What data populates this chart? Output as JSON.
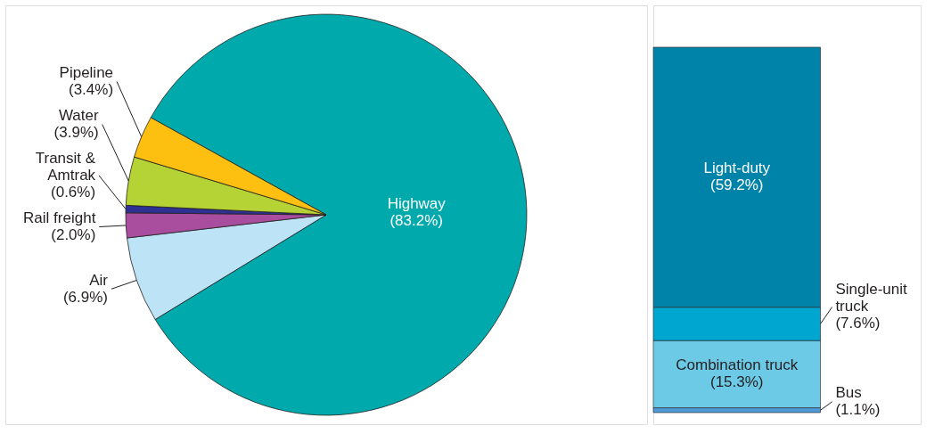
{
  "chart_data": [
    {
      "type": "pie",
      "categories": [
        "Highway",
        "Air",
        "Rail freight",
        "Transit & Amtrak",
        "Water",
        "Pipeline"
      ],
      "values": [
        83.2,
        6.9,
        2.0,
        0.6,
        3.9,
        3.4
      ],
      "colors": [
        "#00a9ac",
        "#bde4f6",
        "#a94d9f",
        "#2e3192",
        "#b5d334",
        "#fdc010"
      ],
      "value_labels": [
        "(83.2%)",
        "(6.9%)",
        "(2.0%)",
        "(0.6%)",
        "(3.9%)",
        "(3.4%)"
      ]
    },
    {
      "type": "bar",
      "stacked": true,
      "categories": [
        null
      ],
      "series": [
        {
          "name": "Bus",
          "color": "#4f9bd9",
          "values": [
            1.1
          ],
          "value_labels": [
            "(1.1%)"
          ]
        },
        {
          "name": "Combination truck",
          "color": "#6dcae6",
          "values": [
            15.3
          ],
          "value_labels": [
            "(15.3%)"
          ]
        },
        {
          "name": "Single-unit truck",
          "color": "#00a5d0",
          "values": [
            7.6
          ],
          "value_labels": [
            "(7.6%)"
          ]
        },
        {
          "name": "Light-duty",
          "color": "#0083a9",
          "values": [
            59.2
          ],
          "value_labels": [
            "(59.2%)"
          ]
        }
      ]
    }
  ]
}
